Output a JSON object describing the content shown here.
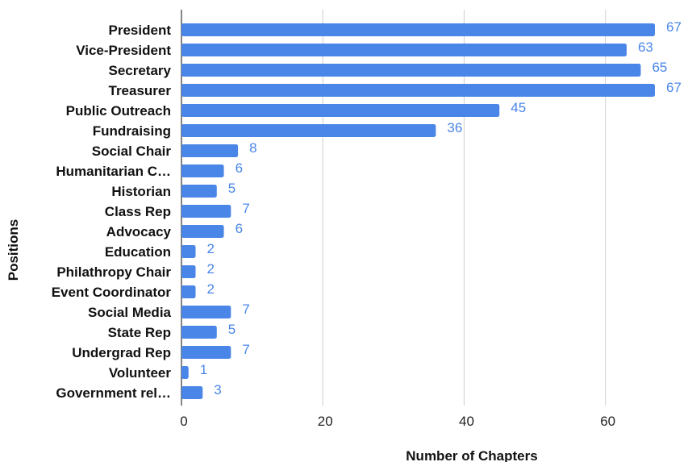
{
  "chart_data": {
    "type": "bar",
    "orientation": "horizontal",
    "categories": [
      "President",
      "Vice-President",
      "Secretary",
      "Treasurer",
      "Public Outreach",
      "Fundraising",
      "Social Chair",
      "Humanitarian C…",
      "Historian",
      "Class Rep",
      "Advocacy",
      "Education",
      "Philathropy Chair",
      "Event Coordinator",
      "Social Media",
      "State Rep",
      "Undergrad Rep",
      "Volunteer",
      "Government rel…"
    ],
    "values": [
      67,
      63,
      65,
      67,
      45,
      36,
      8,
      6,
      5,
      7,
      6,
      2,
      2,
      2,
      7,
      5,
      7,
      1,
      3
    ],
    "xlabel": "Number of Chapters",
    "ylabel": "Positions",
    "xlim": [
      0,
      67
    ],
    "xticks": [
      0,
      20,
      40,
      60
    ],
    "grid": true,
    "bar_color": "#4a86e8",
    "value_label_color": "#4a86e8"
  }
}
